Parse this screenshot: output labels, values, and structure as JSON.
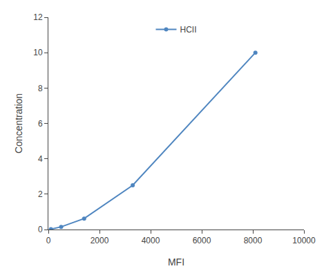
{
  "chart_data": {
    "type": "line",
    "x": [
      100,
      500,
      1400,
      3300,
      8100
    ],
    "series": [
      {
        "name": "HCII",
        "color": "#4f86c0",
        "marker": "circle",
        "values": [
          0.02,
          0.15,
          0.62,
          2.5,
          10.0
        ]
      }
    ],
    "xlabel": "MFI",
    "ylabel": "Concentration",
    "xlim": [
      0,
      10000
    ],
    "ylim": [
      0,
      12
    ],
    "xticks": [
      0,
      2000,
      4000,
      6000,
      8000,
      10000
    ],
    "yticks": [
      0,
      2,
      4,
      6,
      8,
      10,
      12
    ],
    "grid": false,
    "legend": "upper center"
  }
}
